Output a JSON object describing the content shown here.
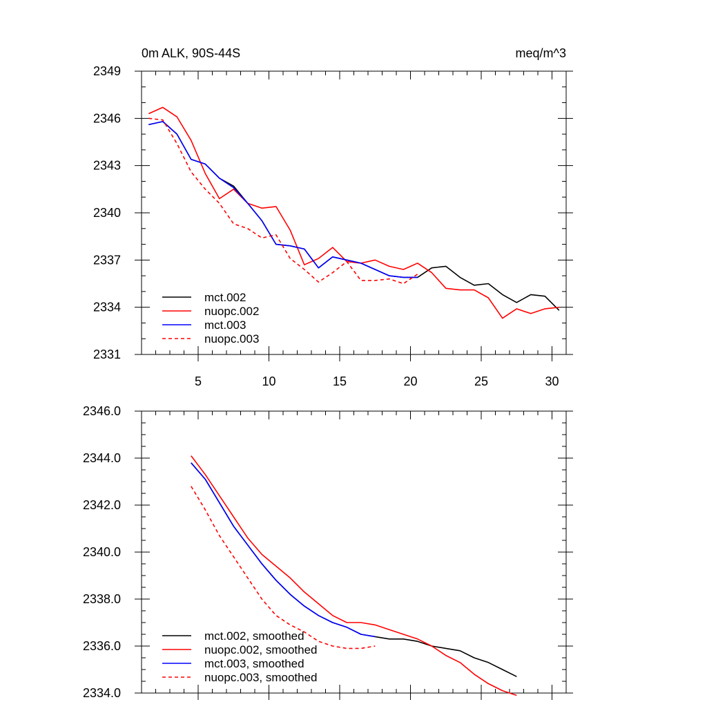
{
  "chart_data": [
    {
      "type": "line",
      "title_left": "0m ALK, 90S-44S",
      "title_right": "meq/m^3",
      "xlim": [
        1,
        31
      ],
      "ylim": [
        2331,
        2349
      ],
      "yticks": [
        "2331",
        "2334",
        "2337",
        "2340",
        "2343",
        "2346",
        "2349"
      ],
      "xticks": [
        "5",
        "10",
        "15",
        "20",
        "25",
        "30"
      ],
      "legend_location": "bottom-left",
      "series": [
        {
          "name": "mct.002",
          "color": "#000000",
          "dash": "solid",
          "x": [
            1.5,
            2.5,
            3.5,
            4.5,
            5.5,
            6.5,
            7.5,
            8.5,
            9.5,
            10.5,
            11.5,
            12.5,
            13.5,
            14.5,
            15.5,
            16.5,
            17.5,
            18.5,
            19.5,
            20.5,
            21.5,
            22.5,
            23.5,
            24.5,
            25.5,
            26.5,
            27.5,
            28.5,
            29.5,
            30.5
          ],
          "y": [
            2345.6,
            2345.8,
            2345.0,
            2343.4,
            2343.1,
            2342.2,
            2341.7,
            2340.6,
            2339.5,
            2338.0,
            2337.9,
            2337.7,
            2336.5,
            2337.2,
            2337.0,
            2336.8,
            2336.4,
            2336.0,
            2335.9,
            2335.9,
            2336.5,
            2336.6,
            2335.9,
            2335.4,
            2335.5,
            2334.8,
            2334.3,
            2334.8,
            2334.7,
            2333.8
          ]
        },
        {
          "name": "nuopc.002",
          "color": "#ff0000",
          "dash": "solid",
          "x": [
            1.5,
            2.5,
            3.5,
            4.5,
            5.5,
            6.5,
            7.5,
            8.5,
            9.5,
            10.5,
            11.5,
            12.5,
            13.5,
            14.5,
            15.5,
            16.5,
            17.5,
            18.5,
            19.5,
            20.5,
            21.5,
            22.5,
            23.5,
            24.5,
            25.5,
            26.5,
            27.5,
            28.5,
            29.5,
            30.5
          ],
          "y": [
            2346.3,
            2346.7,
            2346.1,
            2344.6,
            2342.5,
            2340.9,
            2341.5,
            2340.6,
            2340.3,
            2340.4,
            2338.9,
            2336.7,
            2337.1,
            2337.8,
            2336.9,
            2336.8,
            2337.0,
            2336.6,
            2336.4,
            2336.8,
            2336.2,
            2335.2,
            2335.1,
            2335.1,
            2334.6,
            2333.3,
            2333.9,
            2333.6,
            2333.9,
            2334.0
          ]
        },
        {
          "name": "mct.003",
          "color": "#0000ff",
          "dash": "solid",
          "x": [
            1.5,
            2.5,
            3.5,
            4.5,
            5.5,
            6.5,
            7.5,
            8.5,
            9.5,
            10.5,
            11.5,
            12.5,
            13.5,
            14.5,
            15.5,
            16.5,
            17.5,
            18.5,
            19.5,
            20.5
          ],
          "y": [
            2345.6,
            2345.8,
            2345.0,
            2343.4,
            2343.1,
            2342.2,
            2341.6,
            2340.6,
            2339.5,
            2338.0,
            2337.9,
            2337.7,
            2336.5,
            2337.2,
            2337.0,
            2336.8,
            2336.4,
            2336.0,
            2335.9,
            2335.9
          ]
        },
        {
          "name": "nuopc.003",
          "color": "#ff0000",
          "dash": "dashed",
          "x": [
            1.5,
            2.5,
            3.5,
            4.5,
            5.5,
            6.5,
            7.5,
            8.5,
            9.5,
            10.5,
            11.5,
            12.5,
            13.5,
            14.5,
            15.5,
            16.5,
            17.5,
            18.5,
            19.5,
            20.5
          ],
          "y": [
            2346.0,
            2345.9,
            2344.4,
            2342.6,
            2341.5,
            2340.6,
            2339.3,
            2339.0,
            2338.4,
            2338.6,
            2337.1,
            2336.4,
            2335.6,
            2336.2,
            2336.9,
            2335.7,
            2335.7,
            2335.8,
            2335.5,
            2336.1
          ]
        }
      ]
    },
    {
      "type": "line",
      "xlim": [
        1,
        31
      ],
      "ylim": [
        2334.0,
        2346.0
      ],
      "yticks": [
        "2334.0",
        "2336.0",
        "2338.0",
        "2340.0",
        "2342.0",
        "2344.0",
        "2346.0"
      ],
      "legend_location": "bottom-left",
      "series": [
        {
          "name": "mct.002, smoothed",
          "color": "#000000",
          "dash": "solid",
          "x": [
            4.5,
            5.5,
            6.5,
            7.5,
            8.5,
            9.5,
            10.5,
            11.5,
            12.5,
            13.5,
            14.5,
            15.5,
            16.5,
            17.5,
            18.5,
            19.5,
            20.5,
            21.5,
            22.5,
            23.5,
            24.5,
            25.5,
            26.5,
            27.5
          ],
          "y": [
            2343.8,
            2343.1,
            2342.1,
            2341.1,
            2340.3,
            2339.5,
            2338.8,
            2338.2,
            2337.7,
            2337.3,
            2337.0,
            2336.8,
            2336.5,
            2336.4,
            2336.3,
            2336.3,
            2336.2,
            2336.0,
            2335.9,
            2335.8,
            2335.5,
            2335.3,
            2335.0,
            2334.7
          ]
        },
        {
          "name": "nuopc.002, smoothed",
          "color": "#ff0000",
          "dash": "solid",
          "x": [
            4.5,
            5.5,
            6.5,
            7.5,
            8.5,
            9.5,
            10.5,
            11.5,
            12.5,
            13.5,
            14.5,
            15.5,
            16.5,
            17.5,
            18.5,
            19.5,
            20.5,
            21.5,
            22.5,
            23.5,
            24.5,
            25.5,
            26.5,
            27.5
          ],
          "y": [
            2344.1,
            2343.3,
            2342.4,
            2341.5,
            2340.6,
            2339.9,
            2339.4,
            2338.9,
            2338.3,
            2337.8,
            2337.3,
            2337.0,
            2337.0,
            2336.9,
            2336.7,
            2336.5,
            2336.3,
            2336.0,
            2335.6,
            2335.3,
            2334.8,
            2334.4,
            2334.1,
            2333.9
          ]
        },
        {
          "name": "mct.003, smoothed",
          "color": "#0000ff",
          "dash": "solid",
          "x": [
            4.5,
            5.5,
            6.5,
            7.5,
            8.5,
            9.5,
            10.5,
            11.5,
            12.5,
            13.5,
            14.5,
            15.5,
            16.5,
            17.5
          ],
          "y": [
            2343.8,
            2343.1,
            2342.1,
            2341.1,
            2340.3,
            2339.5,
            2338.8,
            2338.2,
            2337.7,
            2337.3,
            2337.0,
            2336.8,
            2336.5,
            2336.4
          ]
        },
        {
          "name": "nuopc.003, smoothed",
          "color": "#ff0000",
          "dash": "dashed",
          "x": [
            4.5,
            5.5,
            6.5,
            7.5,
            8.5,
            9.5,
            10.5,
            11.5,
            12.5,
            13.5,
            14.5,
            15.5,
            16.5,
            17.5
          ],
          "y": [
            2342.8,
            2341.8,
            2340.7,
            2339.8,
            2338.9,
            2338.0,
            2337.3,
            2336.9,
            2336.6,
            2336.2,
            2336.0,
            2335.9,
            2335.9,
            2336.0
          ]
        }
      ]
    }
  ]
}
